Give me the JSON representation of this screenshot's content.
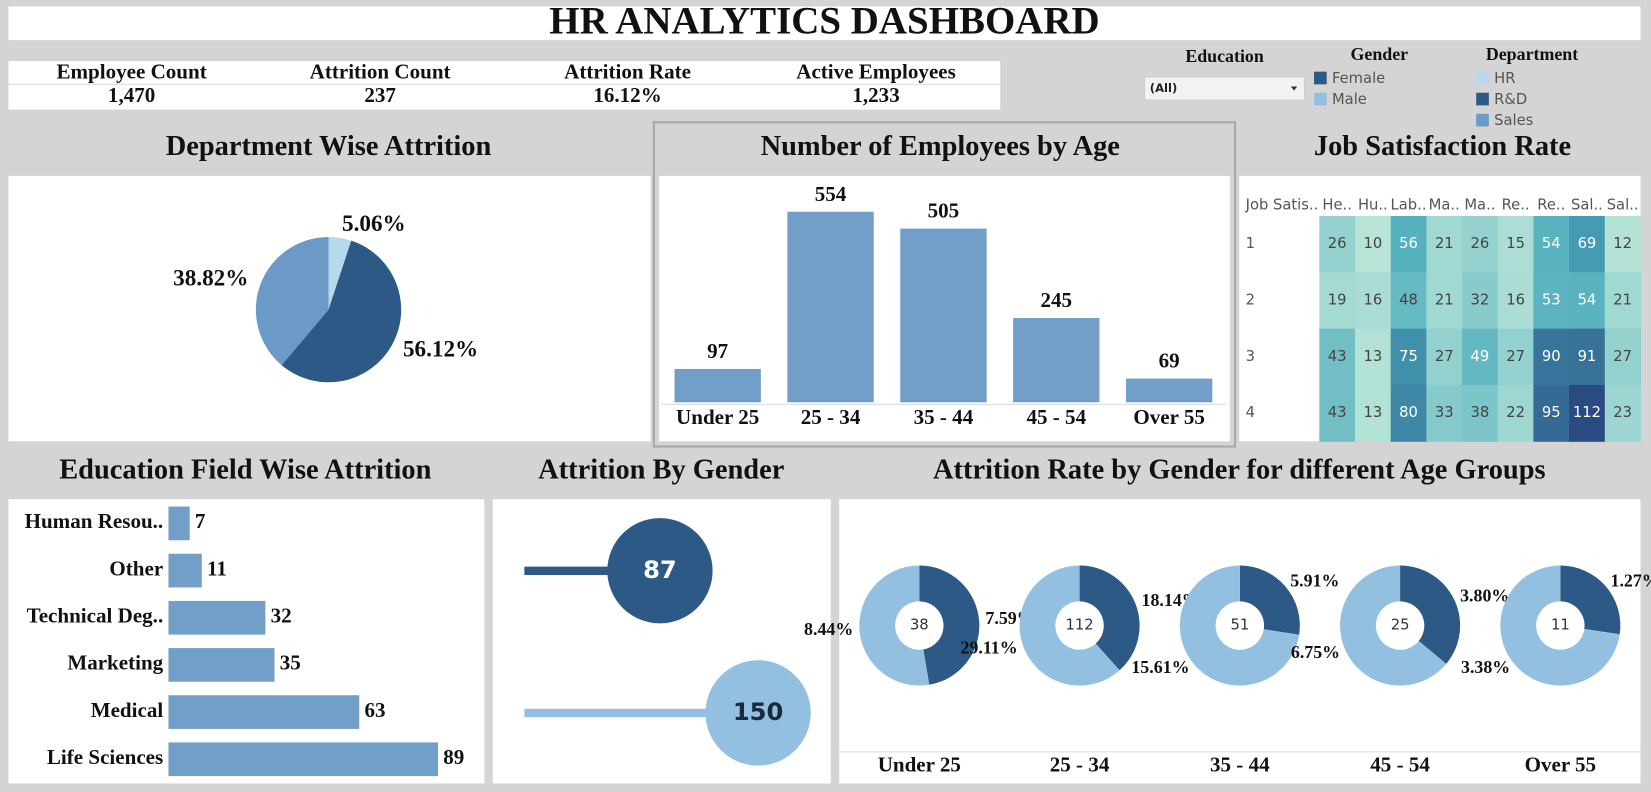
{
  "title": "HR ANALYTICS DASHBOARD",
  "kpis": {
    "labels": [
      "Employee Count",
      "Attrition Count",
      "Attrition Rate",
      "Active Employees"
    ],
    "values": [
      1470,
      237,
      16.12,
      1233
    ],
    "value_labels": [
      "1,470",
      "237",
      "16.12%",
      "1,233"
    ]
  },
  "filters": {
    "education": {
      "label": "Education",
      "selected": "(All)"
    },
    "gender": {
      "label": "Gender"
    },
    "department": {
      "label": "Department"
    }
  },
  "chart_data": [
    {
      "type": "pie",
      "title": "Department Wise Attrition",
      "categories": [
        "HR",
        "R&D",
        "Sales"
      ],
      "values": [
        5.06,
        56.12,
        38.82
      ],
      "value_labels": [
        "5.06%",
        "56.12%",
        "38.82%"
      ],
      "colors": [
        "#b7d9ee",
        "#2c5985",
        "#6a9ac5"
      ]
    },
    {
      "type": "bar",
      "title": "Number of Employees by Age",
      "categories": [
        "Under 25",
        "25 - 34",
        "35 - 44",
        "45 - 54",
        "Over 55"
      ],
      "values": [
        97,
        554,
        505,
        245,
        69
      ],
      "color": "#729fc7"
    },
    {
      "type": "heatmap",
      "title": "Job Satisfaction Rate",
      "row_header": "Job Satis..",
      "columns": [
        "He..",
        "Hu..",
        "Lab..",
        "Ma..",
        "Ma..",
        "Re..",
        "Re..",
        "Sal..",
        "Sal.."
      ],
      "rows": [
        "1",
        "2",
        "3",
        "4"
      ],
      "values": [
        [
          26,
          10,
          56,
          21,
          26,
          15,
          54,
          69,
          12
        ],
        [
          19,
          16,
          48,
          21,
          32,
          16,
          53,
          54,
          21
        ],
        [
          43,
          13,
          75,
          27,
          49,
          27,
          90,
          91,
          27
        ],
        [
          43,
          13,
          80,
          33,
          38,
          22,
          95,
          112,
          23
        ]
      ],
      "colors": [
        "#b8e4d8",
        "#4aabbb",
        "#2a4a82"
      ]
    },
    {
      "type": "bar",
      "orientation": "horizontal",
      "title": "Education Field Wise Attrition",
      "categories": [
        "Human Resou..",
        "Other",
        "Technical Deg..",
        "Marketing",
        "Medical",
        "Life Sciences"
      ],
      "values": [
        7,
        11,
        32,
        35,
        63,
        89
      ],
      "color": "#729fc7"
    },
    {
      "type": "lollipop",
      "title": "Attrition By Gender",
      "values": [
        87,
        150
      ],
      "colors": [
        "#2c5985",
        "#93c0e0"
      ]
    },
    {
      "type": "donut",
      "title": "Attrition Rate by Gender for different Age Groups",
      "categories": [
        "Under 25",
        "25 - 34",
        "35 - 44",
        "45 - 54",
        "Over 55"
      ],
      "center_values": [
        38,
        112,
        51,
        25,
        11
      ],
      "series": [
        {
          "name": "Female",
          "color": "#2c5985",
          "values": [
            7.59,
            18.14,
            5.91,
            3.8,
            1.27
          ],
          "value_labels": [
            "7.59%",
            "18.14%",
            "5.91%",
            "3.80%",
            "1.27%"
          ]
        },
        {
          "name": "Male",
          "color": "#93c0e0",
          "values": [
            8.44,
            29.11,
            15.61,
            6.75,
            3.38
          ],
          "value_labels": [
            "8.44%",
            "29.11%",
            "15.61%",
            "6.75%",
            "3.38%"
          ]
        }
      ]
    }
  ]
}
